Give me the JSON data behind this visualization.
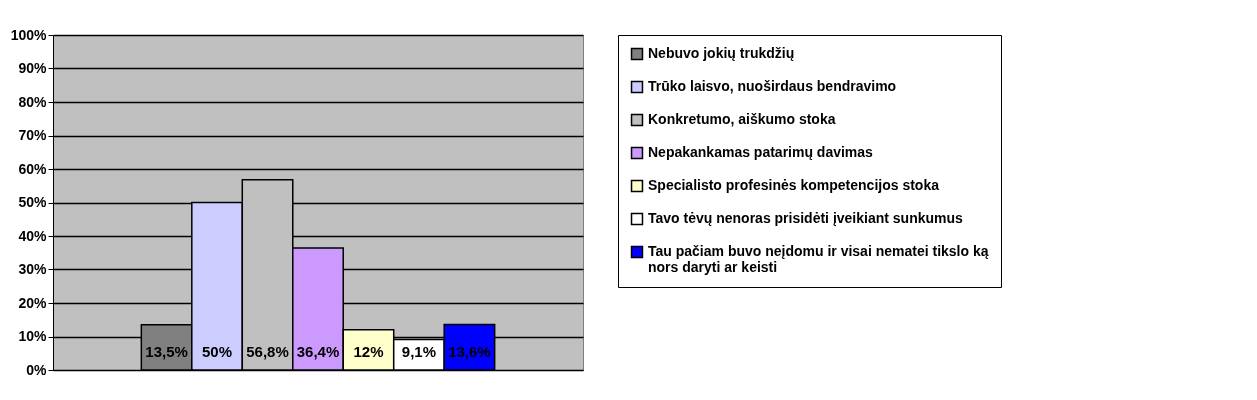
{
  "chart_data": {
    "type": "bar",
    "categories": [
      null
    ],
    "series": [
      {
        "name": "Nebuvo jokių trukdžių",
        "color": "#808080",
        "values": [
          13.5
        ],
        "value_labels": [
          "13,5%"
        ]
      },
      {
        "name": "Trūko laisvo, nuoširdaus bendravimo",
        "color": "#ccccff",
        "values": [
          50
        ],
        "value_labels": [
          "50%"
        ]
      },
      {
        "name": "Konkretumo, aiškumo stoka",
        "color": "#c0c0c0",
        "values": [
          56.8
        ],
        "value_labels": [
          "56,8%"
        ]
      },
      {
        "name": "Nepakankamas patarimų davimas",
        "color": "#cc99ff",
        "values": [
          36.4
        ],
        "value_labels": [
          "36,4%"
        ]
      },
      {
        "name": "Specialisto profesinės kompetencijos stoka",
        "color": "#ffffcc",
        "values": [
          12
        ],
        "value_labels": [
          "12%"
        ]
      },
      {
        "name": "Tavo tėvų nenoras prisidėti įveikiant sunkumus",
        "color": "#ffffff",
        "values": [
          9.1
        ],
        "value_labels": [
          "9,1%"
        ]
      },
      {
        "name": "Tau pačiam buvo neįdomu ir visai nematei tikslo ką nors daryti ar keisti",
        "color": "#0000ff",
        "values": [
          13.6
        ],
        "value_labels": [
          "13,6%"
        ]
      }
    ],
    "ylim": [
      0,
      100
    ],
    "yticks": [
      {
        "value": 0,
        "label": "0%"
      },
      {
        "value": 10,
        "label": "10%"
      },
      {
        "value": 20,
        "label": "20%"
      },
      {
        "value": 30,
        "label": "30%"
      },
      {
        "value": 40,
        "label": "40%"
      },
      {
        "value": 50,
        "label": "50%"
      },
      {
        "value": 60,
        "label": "60%"
      },
      {
        "value": 70,
        "label": "70%"
      },
      {
        "value": 80,
        "label": "80%"
      },
      {
        "value": 90,
        "label": "90%"
      },
      {
        "value": 100,
        "label": "100%"
      }
    ],
    "grid": "y",
    "legend": "right"
  }
}
